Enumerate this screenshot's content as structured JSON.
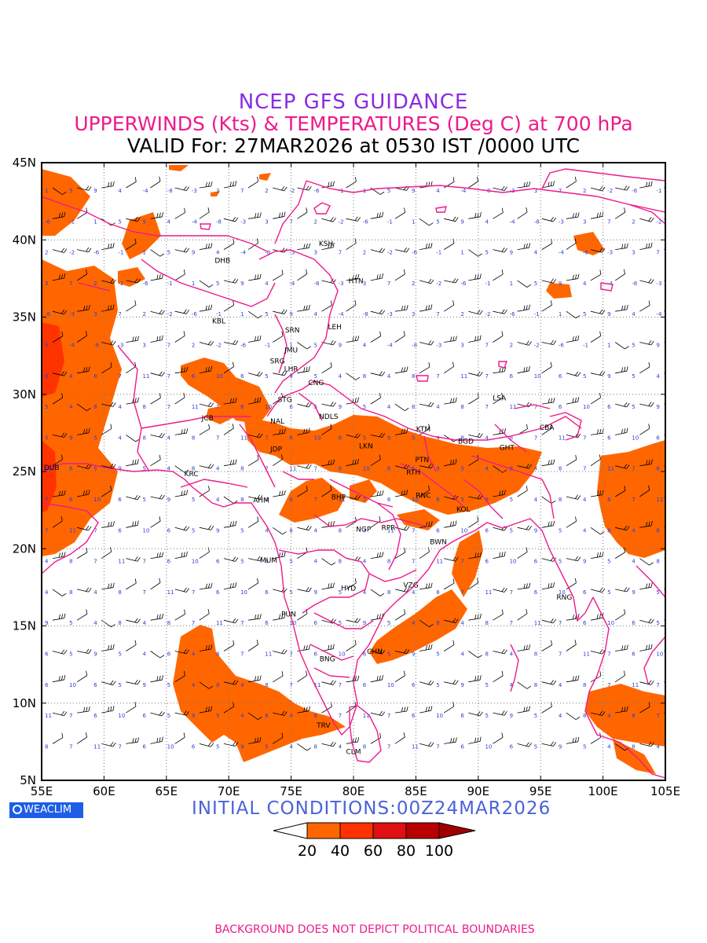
{
  "titles": {
    "line1": "NCEP GFS GUIDANCE",
    "line2": "UPPERWINDS (Kts) & TEMPERATURES (Deg C) at 700 hPa",
    "line3": "VALID For: 27MAR2026 at 0530 IST /0000 UTC"
  },
  "axes": {
    "lon_labels": [
      "55E",
      "60E",
      "65E",
      "70E",
      "75E",
      "80E",
      "85E",
      "90E",
      "95E",
      "100E",
      "105E"
    ],
    "lat_labels": [
      "45N",
      "40N",
      "35N",
      "30N",
      "25N",
      "20N",
      "15N",
      "10N",
      "5N"
    ],
    "lon_range": [
      55,
      105
    ],
    "lat_range": [
      5,
      45
    ],
    "grid": "dotted"
  },
  "stations": [
    {
      "code": "KSH",
      "lon": 77.8,
      "lat": 39.6
    },
    {
      "code": "DHB",
      "lon": 69.5,
      "lat": 38.5
    },
    {
      "code": "HTN",
      "lon": 80.2,
      "lat": 37.2
    },
    {
      "code": "KBL",
      "lon": 69.2,
      "lat": 34.6
    },
    {
      "code": "LEH",
      "lon": 78.5,
      "lat": 34.2
    },
    {
      "code": "SRN",
      "lon": 75.1,
      "lat": 34.0
    },
    {
      "code": "JMU",
      "lon": 75.0,
      "lat": 32.7
    },
    {
      "code": "SRG",
      "lon": 73.9,
      "lat": 32.0
    },
    {
      "code": "LHR",
      "lon": 75.0,
      "lat": 31.5
    },
    {
      "code": "CNG",
      "lon": 77.0,
      "lat": 30.6
    },
    {
      "code": "STG",
      "lon": 74.5,
      "lat": 29.5
    },
    {
      "code": "LSA",
      "lon": 91.7,
      "lat": 29.6
    },
    {
      "code": "NDLS",
      "lon": 78.0,
      "lat": 28.4
    },
    {
      "code": "JCB",
      "lon": 68.3,
      "lat": 28.3
    },
    {
      "code": "NAL",
      "lon": 73.9,
      "lat": 28.1
    },
    {
      "code": "KTM",
      "lon": 85.6,
      "lat": 27.6
    },
    {
      "code": "CBA",
      "lon": 95.5,
      "lat": 27.7
    },
    {
      "code": "BGD",
      "lon": 89.0,
      "lat": 26.8
    },
    {
      "code": "LKN",
      "lon": 81.0,
      "lat": 26.5
    },
    {
      "code": "GHT",
      "lon": 92.3,
      "lat": 26.4
    },
    {
      "code": "JDP",
      "lon": 73.8,
      "lat": 26.3
    },
    {
      "code": "PTN",
      "lon": 85.5,
      "lat": 25.6
    },
    {
      "code": "DUB",
      "lon": 55.8,
      "lat": 25.1
    },
    {
      "code": "KRC",
      "lon": 67.0,
      "lat": 24.7
    },
    {
      "code": "RTH",
      "lon": 84.8,
      "lat": 24.8
    },
    {
      "code": "BHP",
      "lon": 78.8,
      "lat": 23.2
    },
    {
      "code": "RNC",
      "lon": 85.6,
      "lat": 23.3
    },
    {
      "code": "AHM",
      "lon": 72.6,
      "lat": 23.0
    },
    {
      "code": "KOL",
      "lon": 88.8,
      "lat": 22.4
    },
    {
      "code": "NGP",
      "lon": 80.8,
      "lat": 21.1
    },
    {
      "code": "RPR",
      "lon": 82.8,
      "lat": 21.2
    },
    {
      "code": "BWN",
      "lon": 86.8,
      "lat": 20.3
    },
    {
      "code": "MUM",
      "lon": 73.2,
      "lat": 19.1
    },
    {
      "code": "HYD",
      "lon": 79.6,
      "lat": 17.3
    },
    {
      "code": "VZG",
      "lon": 84.6,
      "lat": 17.5
    },
    {
      "code": "RNG",
      "lon": 96.9,
      "lat": 16.7
    },
    {
      "code": "PUN",
      "lon": 74.8,
      "lat": 15.6
    },
    {
      "code": "CHN",
      "lon": 81.7,
      "lat": 13.2
    },
    {
      "code": "BNG",
      "lon": 77.9,
      "lat": 12.7
    },
    {
      "code": "TRV",
      "lon": 77.6,
      "lat": 8.4
    },
    {
      "code": "CLM",
      "lon": 80.0,
      "lat": 6.7
    }
  ],
  "initial_conditions": "INITIAL CONDITIONS:00Z24MAR2026",
  "brand": "WEACLIM",
  "legend": {
    "labels": [
      "20",
      "40",
      "60",
      "80",
      "100"
    ],
    "colors": [
      "#ffffff",
      "#ff6600",
      "#ff3300",
      "#e01010",
      "#b80000",
      "#a00000"
    ]
  },
  "footer": "BACKGROUND DOES NOT DEPICT POLITICAL BOUNDARIES",
  "colors": {
    "wind_fill": "#ff6600",
    "wind_fill_strong": "#ff3300",
    "boundary": "#ee1a8c",
    "temperature_text": "#2b3fd6",
    "barb": "#000000"
  }
}
